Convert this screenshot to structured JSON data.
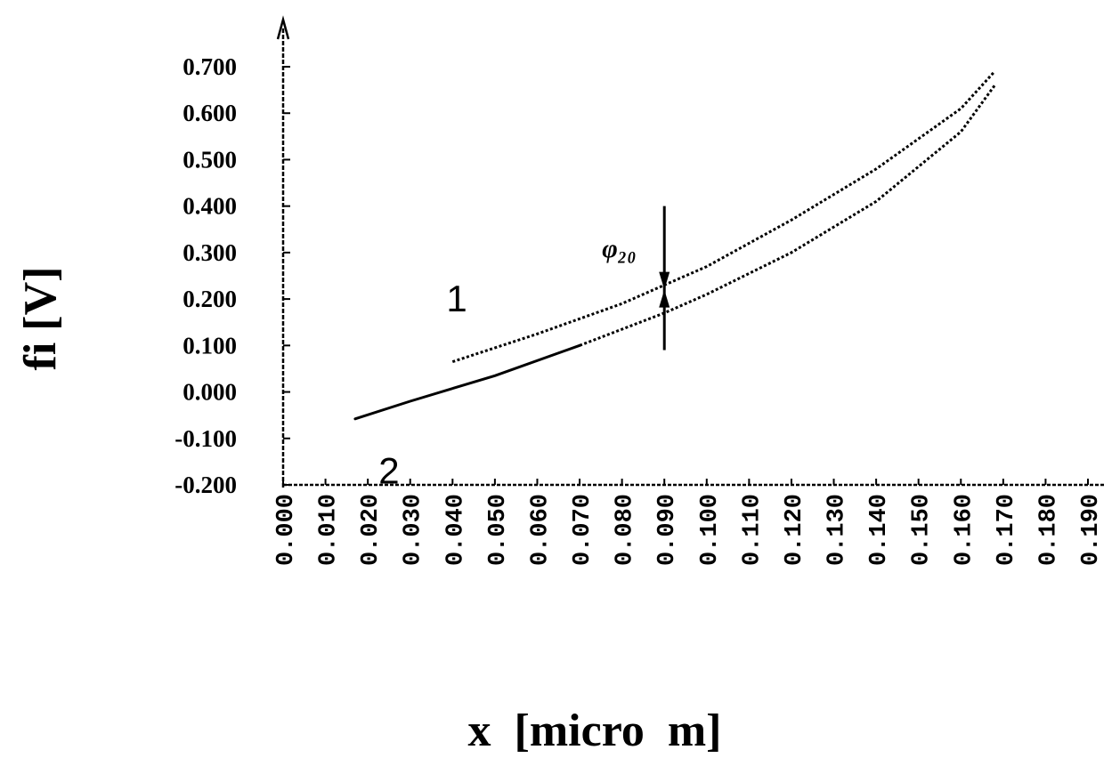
{
  "chart_data": {
    "type": "line",
    "title": "",
    "xlabel": "x  [micro  m]",
    "ylabel": "fi  [V]",
    "xlim": [
      0.0,
      0.19
    ],
    "ylim": [
      -0.2,
      0.7
    ],
    "x_ticks": [
      "0.000",
      "0.010",
      "0.020",
      "0.030",
      "0.040",
      "0.050",
      "0.060",
      "0.070",
      "0.080",
      "0.090",
      "0.100",
      "0.110",
      "0.120",
      "0.130",
      "0.140",
      "0.150",
      "0.160",
      "0.170",
      "0.180",
      "0.190"
    ],
    "y_ticks": [
      "0.700",
      "0.600",
      "0.500",
      "0.400",
      "0.300",
      "0.200",
      "0.100",
      "0.000",
      "-0.100",
      "-0.200"
    ],
    "grid": false,
    "legend": "none",
    "series": [
      {
        "name": "1",
        "style": "dotted",
        "x": [
          0.04,
          0.06,
          0.08,
          0.09,
          0.1,
          0.12,
          0.14,
          0.16,
          0.168
        ],
        "y": [
          0.065,
          0.125,
          0.19,
          0.23,
          0.27,
          0.37,
          0.48,
          0.61,
          0.69
        ]
      },
      {
        "name": "2",
        "style": "solid-then-dotted",
        "x": [
          0.017,
          0.03,
          0.05,
          0.07,
          0.09,
          0.1,
          0.12,
          0.14,
          0.16,
          0.168
        ],
        "y": [
          -0.058,
          -0.02,
          0.035,
          0.1,
          0.17,
          0.21,
          0.3,
          0.41,
          0.56,
          0.66
        ]
      }
    ],
    "annotations": [
      {
        "text": "1",
        "x": 0.041,
        "y": 0.2
      },
      {
        "text": "2",
        "x": 0.025,
        "y": -0.17
      },
      {
        "text": "φ₂₀",
        "type": "double-arrow",
        "x": 0.09,
        "y_from": 0.4,
        "y_to": 0.09
      }
    ]
  }
}
